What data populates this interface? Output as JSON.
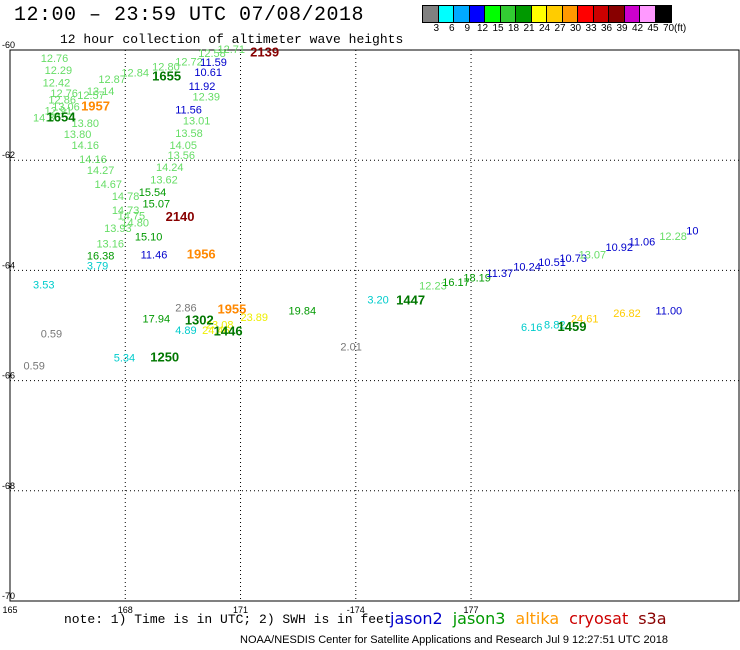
{
  "header": {
    "title": "12:00 – 23:59 UTC 07/08/2018",
    "subtitle": "12 hour collection of altimeter wave heights"
  },
  "legend": {
    "unit": "(ft)",
    "colors": [
      "#808080",
      "#00ffff",
      "#00aaff",
      "#0000ff",
      "#00ff00",
      "#33cc33",
      "#009900",
      "#ffff00",
      "#ffcc00",
      "#ff9900",
      "#ff0000",
      "#cc0000",
      "#880000",
      "#cc00cc",
      "#ff99ff",
      "#000000"
    ],
    "labels": [
      "3",
      "6",
      "9",
      "12",
      "15",
      "18",
      "21",
      "24",
      "27",
      "30",
      "33",
      "36",
      "39",
      "42",
      "45",
      "70"
    ]
  },
  "axes": {
    "lat_labels": [
      "-60",
      "-62",
      "-64",
      "-66",
      "-68",
      "-70"
    ],
    "lon_labels": [
      "165",
      "168",
      "171",
      "-174",
      "177"
    ]
  },
  "map_data": {
    "type": "scatter-map",
    "points": [
      {
        "t": "12.76",
        "c": "#66dd66",
        "lat": -60.22,
        "lon": 165.8
      },
      {
        "t": "12.29",
        "c": "#66dd66",
        "lat": -60.44,
        "lon": 165.9
      },
      {
        "t": "12.42",
        "c": "#66dd66",
        "lat": -60.66,
        "lon": 165.85
      },
      {
        "t": "12.76",
        "c": "#66dd66",
        "lat": -60.85,
        "lon": 166.05
      },
      {
        "t": "12.86",
        "c": "#66dd66",
        "lat": -60.97,
        "lon": 166.0
      },
      {
        "t": "14.30",
        "c": "#66dd66",
        "lat": -61.3,
        "lon": 165.6
      },
      {
        "t": "12.91",
        "c": "#66dd66",
        "lat": -61.17,
        "lon": 165.9
      },
      {
        "t": "13.06",
        "c": "#66dd66",
        "lat": -61.1,
        "lon": 166.1
      },
      {
        "t": "12.57",
        "c": "#66dd66",
        "lat": -60.89,
        "lon": 166.75
      },
      {
        "t": "13.14",
        "c": "#66dd66",
        "lat": -60.82,
        "lon": 167.0
      },
      {
        "t": "12.87",
        "c": "#66dd66",
        "lat": -60.6,
        "lon": 167.3
      },
      {
        "t": "12.84",
        "c": "#66dd66",
        "lat": -60.48,
        "lon": 167.9
      },
      {
        "t": "12.80",
        "c": "#66dd66",
        "lat": -60.37,
        "lon": 168.7
      },
      {
        "t": "12.72",
        "c": "#66dd66",
        "lat": -60.28,
        "lon": 169.3
      },
      {
        "t": "12.58",
        "c": "#66dd66",
        "lat": -60.13,
        "lon": 169.9
      },
      {
        "t": "12.71",
        "c": "#66dd66",
        "lat": -60.05,
        "lon": 170.4
      },
      {
        "t": "13.80",
        "c": "#66dd66",
        "lat": -61.6,
        "lon": 166.4
      },
      {
        "t": "13.80",
        "c": "#66dd66",
        "lat": -61.4,
        "lon": 166.6
      },
      {
        "t": "14.16",
        "c": "#66dd66",
        "lat": -61.8,
        "lon": 166.6
      },
      {
        "t": "14.16",
        "c": "#66dd66",
        "lat": -62.05,
        "lon": 166.8
      },
      {
        "t": "14.27",
        "c": "#66dd66",
        "lat": -62.25,
        "lon": 167.0
      },
      {
        "t": "14.67",
        "c": "#66dd66",
        "lat": -62.5,
        "lon": 167.2
      },
      {
        "t": "14.78",
        "c": "#66dd66",
        "lat": -62.72,
        "lon": 167.65
      },
      {
        "t": "14.73",
        "c": "#66dd66",
        "lat": -62.98,
        "lon": 167.65
      },
      {
        "t": "14.75",
        "c": "#66dd66",
        "lat": -63.08,
        "lon": 167.8
      },
      {
        "t": "14.80",
        "c": "#66dd66",
        "lat": -63.2,
        "lon": 167.9
      },
      {
        "t": "13.93",
        "c": "#66dd66",
        "lat": -63.3,
        "lon": 167.45
      },
      {
        "t": "13.16",
        "c": "#66dd66",
        "lat": -63.58,
        "lon": 167.25
      },
      {
        "t": "15.54",
        "c": "#009900",
        "lat": -62.65,
        "lon": 168.35
      },
      {
        "t": "15.07",
        "c": "#009900",
        "lat": -62.86,
        "lon": 168.45
      },
      {
        "t": "15.10",
        "c": "#009900",
        "lat": -63.46,
        "lon": 168.25
      },
      {
        "t": "16.38",
        "c": "#009900",
        "lat": -63.8,
        "lon": 167.0
      },
      {
        "t": "13.62",
        "c": "#66dd66",
        "lat": -62.42,
        "lon": 168.65
      },
      {
        "t": "14.24",
        "c": "#66dd66",
        "lat": -62.2,
        "lon": 168.8
      },
      {
        "t": "13.56",
        "c": "#66dd66",
        "lat": -61.98,
        "lon": 169.1
      },
      {
        "t": "14.05",
        "c": "#66dd66",
        "lat": -61.8,
        "lon": 169.15
      },
      {
        "t": "13.58",
        "c": "#66dd66",
        "lat": -61.58,
        "lon": 169.3
      },
      {
        "t": "13.01",
        "c": "#66dd66",
        "lat": -61.35,
        "lon": 169.5
      },
      {
        "t": "12.39",
        "c": "#66dd66",
        "lat": -60.92,
        "lon": 169.75
      },
      {
        "t": "11.59",
        "c": "#0000cc",
        "lat": -60.29,
        "lon": 169.95
      },
      {
        "t": "10.61",
        "c": "#0000cc",
        "lat": -60.47,
        "lon": 169.8
      },
      {
        "t": "11.92",
        "c": "#0000cc",
        "lat": -60.73,
        "lon": 169.65
      },
      {
        "t": "11.56",
        "c": "#0000cc",
        "lat": -61.15,
        "lon": 169.3
      },
      {
        "t": "11.46",
        "c": "#0000cc",
        "lat": -63.78,
        "lon": 168.4
      },
      {
        "t": "3.79",
        "c": "#00cccc",
        "lat": -63.98,
        "lon": 167.0
      },
      {
        "t": "3.53",
        "c": "#00cccc",
        "lat": -64.33,
        "lon": 165.6
      },
      {
        "t": "0.59",
        "c": "#777777",
        "lat": -65.22,
        "lon": 165.8
      },
      {
        "t": "0.59",
        "c": "#777777",
        "lat": -65.8,
        "lon": 165.35
      },
      {
        "t": "5.34",
        "c": "#00cccc",
        "lat": -65.65,
        "lon": 167.7
      },
      {
        "t": "17.94",
        "c": "#009900",
        "lat": -64.95,
        "lon": 168.45
      },
      {
        "t": "2.86",
        "c": "#777777",
        "lat": -64.75,
        "lon": 169.3
      },
      {
        "t": "4.89",
        "c": "#00cccc",
        "lat": -65.15,
        "lon": 169.3
      },
      {
        "t": "23.08",
        "c": "#eeee00",
        "lat": -65.05,
        "lon": 170.1
      },
      {
        "t": "24.46",
        "c": "#eeee00",
        "lat": -65.15,
        "lon": 170.0
      },
      {
        "t": "23.89",
        "c": "#eeee00",
        "lat": -64.92,
        "lon": 171.0
      },
      {
        "t": "19.84",
        "c": "#009900",
        "lat": -64.8,
        "lon": 172.25
      },
      {
        "t": "2.01",
        "c": "#777777",
        "lat": -65.45,
        "lon": 173.6
      },
      {
        "t": "3.20",
        "c": "#00cccc",
        "lat": -64.6,
        "lon": 174.3
      },
      {
        "t": "12.23",
        "c": "#66dd66",
        "lat": -64.35,
        "lon": 175.65
      },
      {
        "t": "16.17",
        "c": "#009900",
        "lat": -64.28,
        "lon": 176.25
      },
      {
        "t": "18.19",
        "c": "#009900",
        "lat": -64.2,
        "lon": 176.8
      },
      {
        "t": "11.37",
        "c": "#0000cc",
        "lat": -64.12,
        "lon": 177.4
      },
      {
        "t": "10.24",
        "c": "#0000cc",
        "lat": -64.0,
        "lon": 178.1
      },
      {
        "t": "10.51",
        "c": "#0000cc",
        "lat": -63.92,
        "lon": 178.75
      },
      {
        "t": "10.73",
        "c": "#0000cc",
        "lat": -63.85,
        "lon": 179.3
      },
      {
        "t": "13.07",
        "c": "#66dd66",
        "lat": -63.78,
        "lon": 179.8
      },
      {
        "t": "10.92",
        "c": "#0000cc",
        "lat": -63.65,
        "lon": -179.5
      },
      {
        "t": "11.06",
        "c": "#0000cc",
        "lat": -63.55,
        "lon": -178.9
      },
      {
        "t": "12.28",
        "c": "#66dd66",
        "lat": -63.45,
        "lon": -178.1
      },
      {
        "t": "10",
        "c": "#0000cc",
        "lat": -63.35,
        "lon": -177.4
      },
      {
        "t": "6.16",
        "c": "#00cccc",
        "lat": -65.1,
        "lon": 178.3
      },
      {
        "t": "8.82",
        "c": "#00cccc",
        "lat": -65.05,
        "lon": 178.9
      },
      {
        "t": "26.82",
        "c": "#ffcc00",
        "lat": -64.85,
        "lon": -179.3
      },
      {
        "t": "24.61",
        "c": "#ffcc00",
        "lat": -64.95,
        "lon": 179.6
      },
      {
        "t": "11.00",
        "c": "#0000cc",
        "lat": -64.8,
        "lon": -178.2
      }
    ],
    "times": [
      {
        "t": "2139",
        "c": "#880000",
        "lat": -60.12,
        "lon": 171.25
      },
      {
        "t": "1655",
        "c": "#007700",
        "lat": -60.55,
        "lon": 168.7
      },
      {
        "t": "1957",
        "c": "#ff8800",
        "lat": -61.1,
        "lon": 166.85
      },
      {
        "t": "1654",
        "c": "#007700",
        "lat": -61.3,
        "lon": 165.95
      },
      {
        "t": "2140",
        "c": "#880000",
        "lat": -63.1,
        "lon": 169.05
      },
      {
        "t": "1956",
        "c": "#ff8800",
        "lat": -63.78,
        "lon": 169.6
      },
      {
        "t": "1955",
        "c": "#ff8800",
        "lat": -64.78,
        "lon": 170.4
      },
      {
        "t": "1302",
        "c": "#007700",
        "lat": -64.98,
        "lon": 169.55
      },
      {
        "t": "1446",
        "c": "#007700",
        "lat": -65.18,
        "lon": 170.3
      },
      {
        "t": "1250",
        "c": "#007700",
        "lat": -65.65,
        "lon": 168.65
      },
      {
        "t": "1447",
        "c": "#007700",
        "lat": -64.62,
        "lon": 175.05
      },
      {
        "t": "1459",
        "c": "#007700",
        "lat": -65.1,
        "lon": 179.25
      }
    ]
  },
  "note": "note: 1) Time is in UTC; 2) SWH is in feet",
  "satellites": [
    {
      "name": "jason2",
      "color": "#0000cc"
    },
    {
      "name": "jason3",
      "color": "#009900"
    },
    {
      "name": "altika",
      "color": "#ff9900"
    },
    {
      "name": "cryosat",
      "color": "#cc0000"
    },
    {
      "name": "s3a",
      "color": "#880000"
    }
  ],
  "credit": "NOAA/NESDIS Center for Satellite Applications and Research    Jul  9 12:27:51 UTC 2018"
}
